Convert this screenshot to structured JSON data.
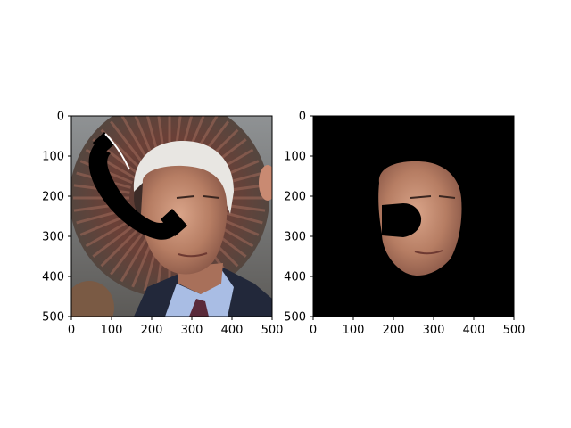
{
  "chart_data": [
    {
      "type": "image",
      "title": "",
      "xlabel": "",
      "ylabel": "",
      "xlim": [
        0,
        500
      ],
      "ylim": [
        500,
        0
      ],
      "y_inverted": true,
      "xticks": [
        0,
        100,
        200,
        300,
        400,
        500
      ],
      "yticks": [
        0,
        100,
        200,
        300,
        400,
        500
      ],
      "grid": false,
      "content": "photo of an elderly man with white hair in a suit, partially occluded by a black telephone-handset shape",
      "occluder": "black telephone handset",
      "background_color": "#6e6a66"
    },
    {
      "type": "image",
      "title": "",
      "xlabel": "",
      "ylabel": "",
      "xlim": [
        0,
        500
      ],
      "ylim": [
        500,
        0
      ],
      "y_inverted": true,
      "xticks": [
        0,
        100,
        200,
        300,
        400,
        500
      ],
      "yticks": [
        0,
        100,
        200,
        300,
        400,
        500
      ],
      "grid": false,
      "content": "segmented face region of the same man on a black background, with the occluder cut out",
      "background_color": "#000000"
    }
  ]
}
